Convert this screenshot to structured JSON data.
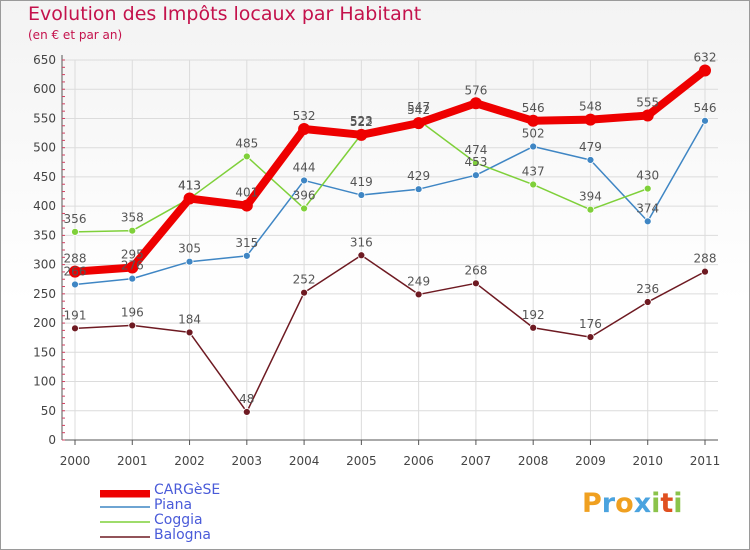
{
  "title": "Evolution des Impôts locaux par Habitant",
  "subtitle": "(en € et par an)",
  "brand": {
    "text": "Proxiti",
    "letters": [
      "P",
      "r",
      "o",
      "x",
      "i",
      "t",
      "i"
    ],
    "letter_colors": [
      "#f0a020",
      "#4aa3df",
      "#f0a020",
      "#4aa3df",
      "#8bc34a",
      "#e05020",
      "#8bc34a"
    ]
  },
  "chart_data": {
    "type": "line",
    "title": "Evolution des Impôts locaux par Habitant",
    "subtitle": "(en € et par an)",
    "xlabel": "",
    "ylabel": "",
    "categories": [
      "2000",
      "2001",
      "2002",
      "2003",
      "2004",
      "2005",
      "2006",
      "2007",
      "2008",
      "2009",
      "2010",
      "2011"
    ],
    "ylim": [
      0,
      650
    ],
    "yticks": [
      "0",
      "50",
      "100",
      "150",
      "200",
      "250",
      "300",
      "350",
      "400",
      "450",
      "500",
      "550",
      "600",
      "650"
    ],
    "grid": true,
    "legend_position": "bottom-left",
    "series": [
      {
        "name": "CARGèSE",
        "color": "#ee0000",
        "values": [
          288,
          295,
          413,
          401,
          532,
          522,
          542,
          576,
          546,
          548,
          555,
          632
        ],
        "labels": [
          "288",
          "295",
          "413",
          "401",
          "532",
          "522",
          "542",
          "576",
          "546",
          "548",
          "555",
          "632"
        ],
        "emphasis": true
      },
      {
        "name": "Piana",
        "color": "#3f86c4",
        "values": [
          266,
          276,
          305,
          315,
          444,
          419,
          429,
          453,
          502,
          479,
          374,
          546
        ],
        "labels": [
          "266",
          "276",
          "305",
          "315",
          "444",
          "419",
          "429",
          "453",
          "502",
          "479",
          "374",
          "546"
        ]
      },
      {
        "name": "Coggia",
        "color": "#7fd03a",
        "values": [
          356,
          358,
          413,
          485,
          396,
          523,
          547,
          474,
          437,
          394,
          430,
          null
        ],
        "labels": [
          "356",
          "358",
          "413",
          "485",
          "396",
          "523",
          "547",
          "474",
          "437",
          "394",
          "430",
          ""
        ]
      },
      {
        "name": "Balogna",
        "color": "#6e1a22",
        "values": [
          191,
          196,
          184,
          48,
          252,
          316,
          249,
          268,
          192,
          176,
          236,
          288
        ],
        "labels": [
          "191",
          "196",
          "184",
          "48",
          "252",
          "316",
          "249",
          "268",
          "192",
          "176",
          "236",
          "288"
        ]
      }
    ]
  }
}
